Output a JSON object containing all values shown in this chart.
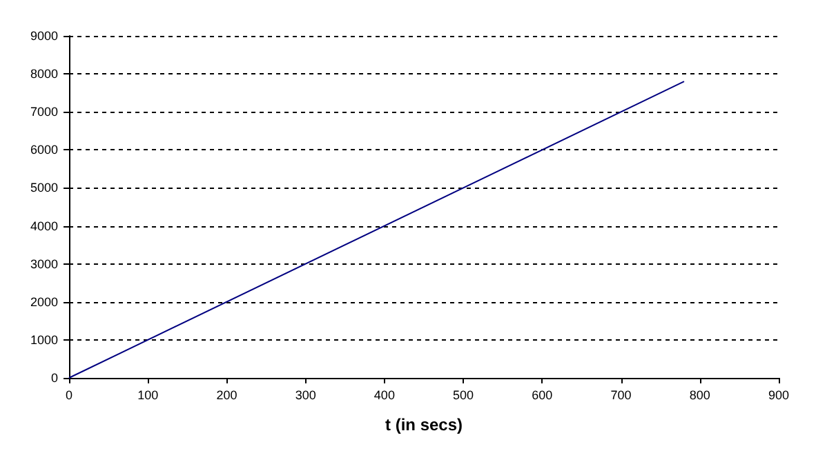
{
  "chart_data": {
    "type": "line",
    "xlabel": "t (in secs)",
    "x": [
      0,
      780
    ],
    "series": [
      {
        "color": "#000080",
        "values": [
          0,
          7800
        ]
      }
    ],
    "xlim": [
      0,
      900
    ],
    "xticks": [
      0,
      100,
      200,
      300,
      400,
      500,
      600,
      700,
      800,
      900
    ],
    "ylim": [
      0,
      9000
    ],
    "yticks": [
      0,
      1000,
      2000,
      3000,
      4000,
      5000,
      6000,
      7000,
      8000,
      9000
    ],
    "grid": "y",
    "marker": "none",
    "line_style": "solid"
  }
}
